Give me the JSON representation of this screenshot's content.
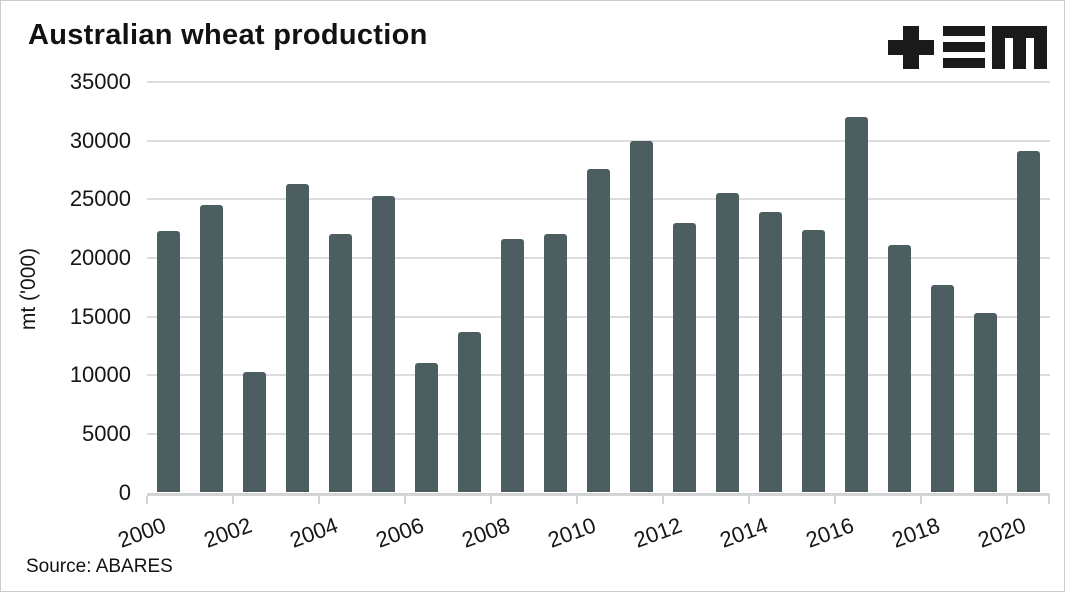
{
  "header": {
    "title": "Australian wheat production",
    "logo": "plus-triple-bar-m-logo"
  },
  "source_note": "Source: ABARES",
  "chart_data": {
    "type": "bar",
    "title": "Australian wheat production",
    "xlabel": "",
    "ylabel": "mt ('000)",
    "source": "Source: ABARES",
    "categories": [
      2000,
      2001,
      2002,
      2003,
      2004,
      2005,
      2006,
      2007,
      2008,
      2009,
      2010,
      2011,
      2012,
      2013,
      2014,
      2015,
      2016,
      2017,
      2018,
      2019,
      2020
    ],
    "values": [
      22300,
      24500,
      10300,
      26300,
      22000,
      25300,
      11000,
      13700,
      21600,
      22000,
      27600,
      30000,
      23000,
      25500,
      23900,
      22400,
      32000,
      21100,
      17700,
      15300,
      29100
    ],
    "ylim": [
      0,
      35000
    ],
    "ytick_step": 5000,
    "ytick_labels": [
      "0",
      "5000",
      "10000",
      "15000",
      "20000",
      "25000",
      "30000",
      "35000"
    ],
    "xtick_labels": [
      "2000",
      "2002",
      "2004",
      "2006",
      "2008",
      "2010",
      "2012",
      "2014",
      "2016",
      "2018",
      "2020"
    ],
    "grid": "horizontal-only",
    "legend": "none",
    "colors": {
      "bar": "#4d5e61",
      "grid": "#dcdcdc",
      "axis": "#d4d4d4",
      "text": "#161616",
      "logo": "#1a1a1a"
    }
  }
}
